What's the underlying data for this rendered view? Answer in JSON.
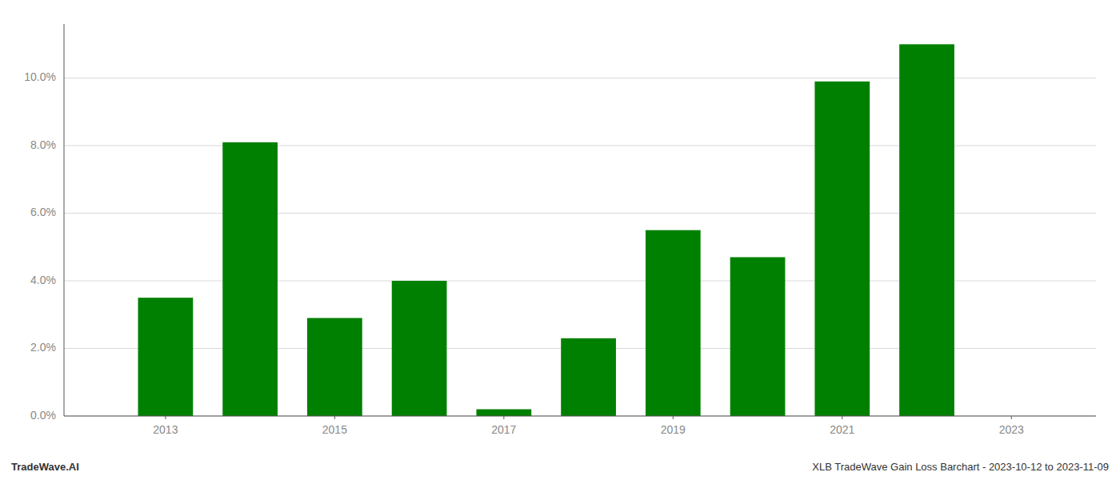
{
  "chart_data": {
    "type": "bar",
    "x": [
      2013,
      2014,
      2015,
      2016,
      2017,
      2018,
      2019,
      2020,
      2021,
      2022
    ],
    "values": [
      0.035,
      0.081,
      0.029,
      0.04,
      0.002,
      0.023,
      0.055,
      0.047,
      0.099,
      0.11
    ],
    "color": "#008000",
    "xlim": [
      2011.8,
      2024.0
    ],
    "xticks": [
      2013,
      2015,
      2017,
      2019,
      2021,
      2023
    ],
    "ylim": [
      0,
      0.116
    ],
    "yticks": [
      {
        "value": 0.0,
        "label": "0.0%"
      },
      {
        "value": 0.02,
        "label": "2.0%"
      },
      {
        "value": 0.04,
        "label": "4.0%"
      },
      {
        "value": 0.06,
        "label": "6.0%"
      },
      {
        "value": 0.08,
        "label": "8.0%"
      },
      {
        "value": 0.1,
        "label": "10.0%"
      }
    ],
    "grid": true,
    "annotations": [
      "TradeWave.AI",
      "XLB TradeWave Gain Loss Barchart - 2023-10-12 to 2023-11-09"
    ]
  }
}
